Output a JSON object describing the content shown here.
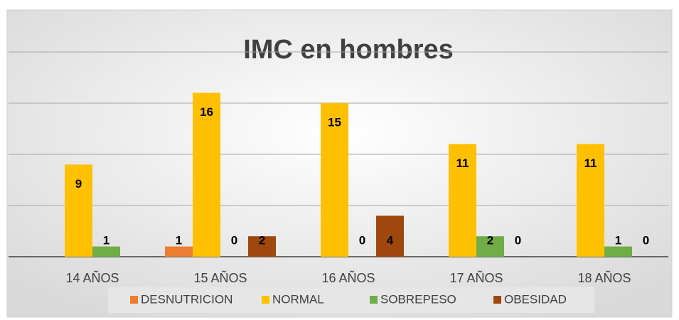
{
  "chart_data": {
    "type": "bar",
    "title": "IMC en hombres",
    "categories": [
      "14 AÑOS",
      "15 AÑOS",
      "16 AÑOS",
      "17 AÑOS",
      "18 AÑOS"
    ],
    "series": [
      {
        "name": "DESNUTRICION",
        "color": "#ed7d31",
        "values": [
          null,
          1,
          null,
          null,
          null
        ]
      },
      {
        "name": "NORMAL",
        "color": "#ffc000",
        "values": [
          9,
          16,
          15,
          11,
          11
        ]
      },
      {
        "name": "SOBREPESO",
        "color": "#70ad47",
        "values": [
          1,
          0,
          0,
          2,
          1
        ]
      },
      {
        "name": "OBESIDAD",
        "color": "#9e480e",
        "values": [
          null,
          2,
          4,
          0,
          0
        ]
      }
    ],
    "ylim": [
      0,
      20
    ],
    "yticks": [
      0,
      5,
      10,
      15,
      20
    ],
    "grid": true,
    "legend": "bottom"
  }
}
